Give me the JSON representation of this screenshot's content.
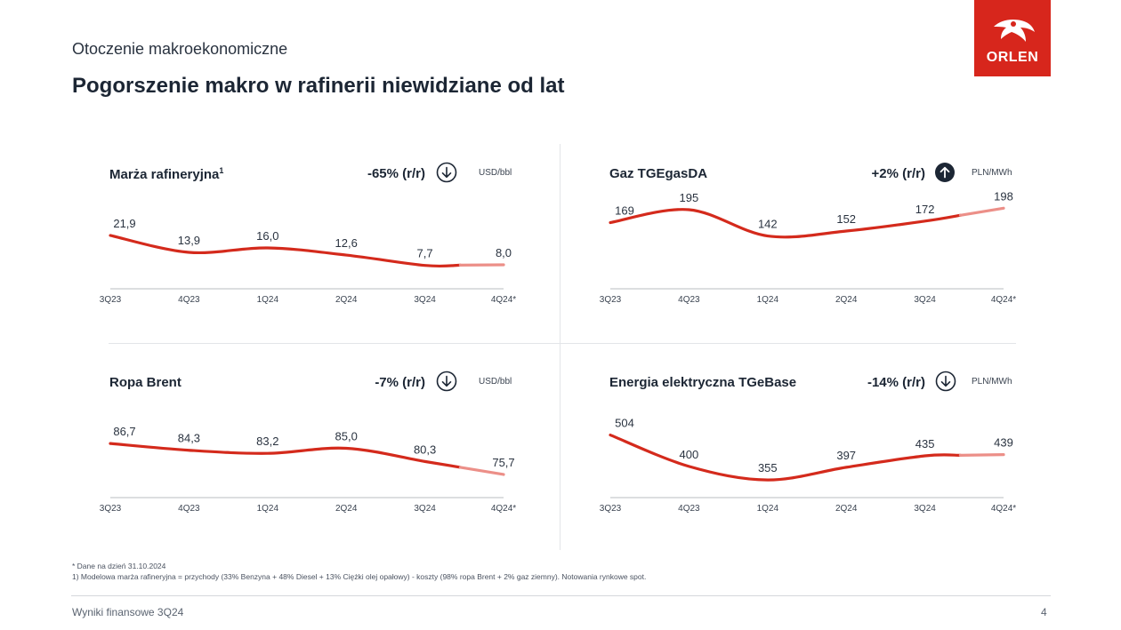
{
  "header": {
    "subtitle": "Otoczenie makroekonomiczne",
    "title": "Pogorszenie makro w rafinerii niewidziane od lat",
    "logo_text": "ORLEN"
  },
  "colors": {
    "brand_red": "#d7261c",
    "line_red": "#d42a1c",
    "forecast_pink": "#ec8f88",
    "dark_navy": "#1c2634"
  },
  "chart_data": [
    {
      "type": "line",
      "title": "Marża rafineryjna",
      "title_sup": "1",
      "change": "-65% (r/r)",
      "direction": "down",
      "unit": "USD/bbl",
      "categories": [
        "3Q23",
        "4Q23",
        "1Q24",
        "2Q24",
        "3Q24",
        "4Q24*"
      ],
      "values": [
        21.9,
        13.9,
        16.0,
        12.6,
        7.7,
        8.0
      ],
      "labels": [
        "21,9",
        "13,9",
        "16,0",
        "12,6",
        "7,7",
        "8,0"
      ],
      "ylim": [
        0,
        40
      ],
      "forecast_last_segment": true
    },
    {
      "type": "line",
      "title": "Gaz TGEgasDA",
      "title_sup": "",
      "change": "+2% (r/r)",
      "direction": "up",
      "unit": "PLN/MWh",
      "categories": [
        "3Q23",
        "4Q23",
        "1Q24",
        "2Q24",
        "3Q24",
        "4Q24*"
      ],
      "values": [
        169,
        195,
        142,
        152,
        172,
        198
      ],
      "labels": [
        "169",
        "195",
        "142",
        "152",
        "172",
        "198"
      ],
      "ylim": [
        50,
        220
      ],
      "forecast_last_segment": true
    },
    {
      "type": "line",
      "title": "Ropa Brent",
      "title_sup": "",
      "change": "-7% (r/r)",
      "direction": "down",
      "unit": "USD/bbl",
      "categories": [
        "3Q23",
        "4Q23",
        "1Q24",
        "2Q24",
        "3Q24",
        "4Q24*"
      ],
      "values": [
        86.7,
        84.3,
        83.2,
        85.0,
        80.3,
        75.7
      ],
      "labels": [
        "86,7",
        "84,3",
        "83,2",
        "85,0",
        "80,3",
        "75,7"
      ],
      "ylim": [
        70,
        100
      ],
      "forecast_last_segment": true
    },
    {
      "type": "line",
      "title": "Energia elektryczna TGeBase",
      "title_sup": "",
      "change": "-14% (r/r)",
      "direction": "down",
      "unit": "PLN/MWh",
      "categories": [
        "3Q23",
        "4Q23",
        "1Q24",
        "2Q24",
        "3Q24",
        "4Q24*"
      ],
      "values": [
        504,
        400,
        355,
        397,
        435,
        439
      ],
      "labels": [
        "504",
        "400",
        "355",
        "397",
        "435",
        "439"
      ],
      "ylim": [
        320,
        600
      ],
      "forecast_last_segment": true
    }
  ],
  "footnotes": [
    "* Dane na dzień 31.10.2024",
    "1) Modelowa marża rafineryjna = przychody (33% Benzyna + 48% Diesel + 13% Ciężki olej opałowy) - koszty (98% ropa Brent + 2% gaz ziemny). Notowania rynkowe spot."
  ],
  "footer": {
    "left": "Wyniki finansowe 3Q24",
    "page": "4"
  }
}
